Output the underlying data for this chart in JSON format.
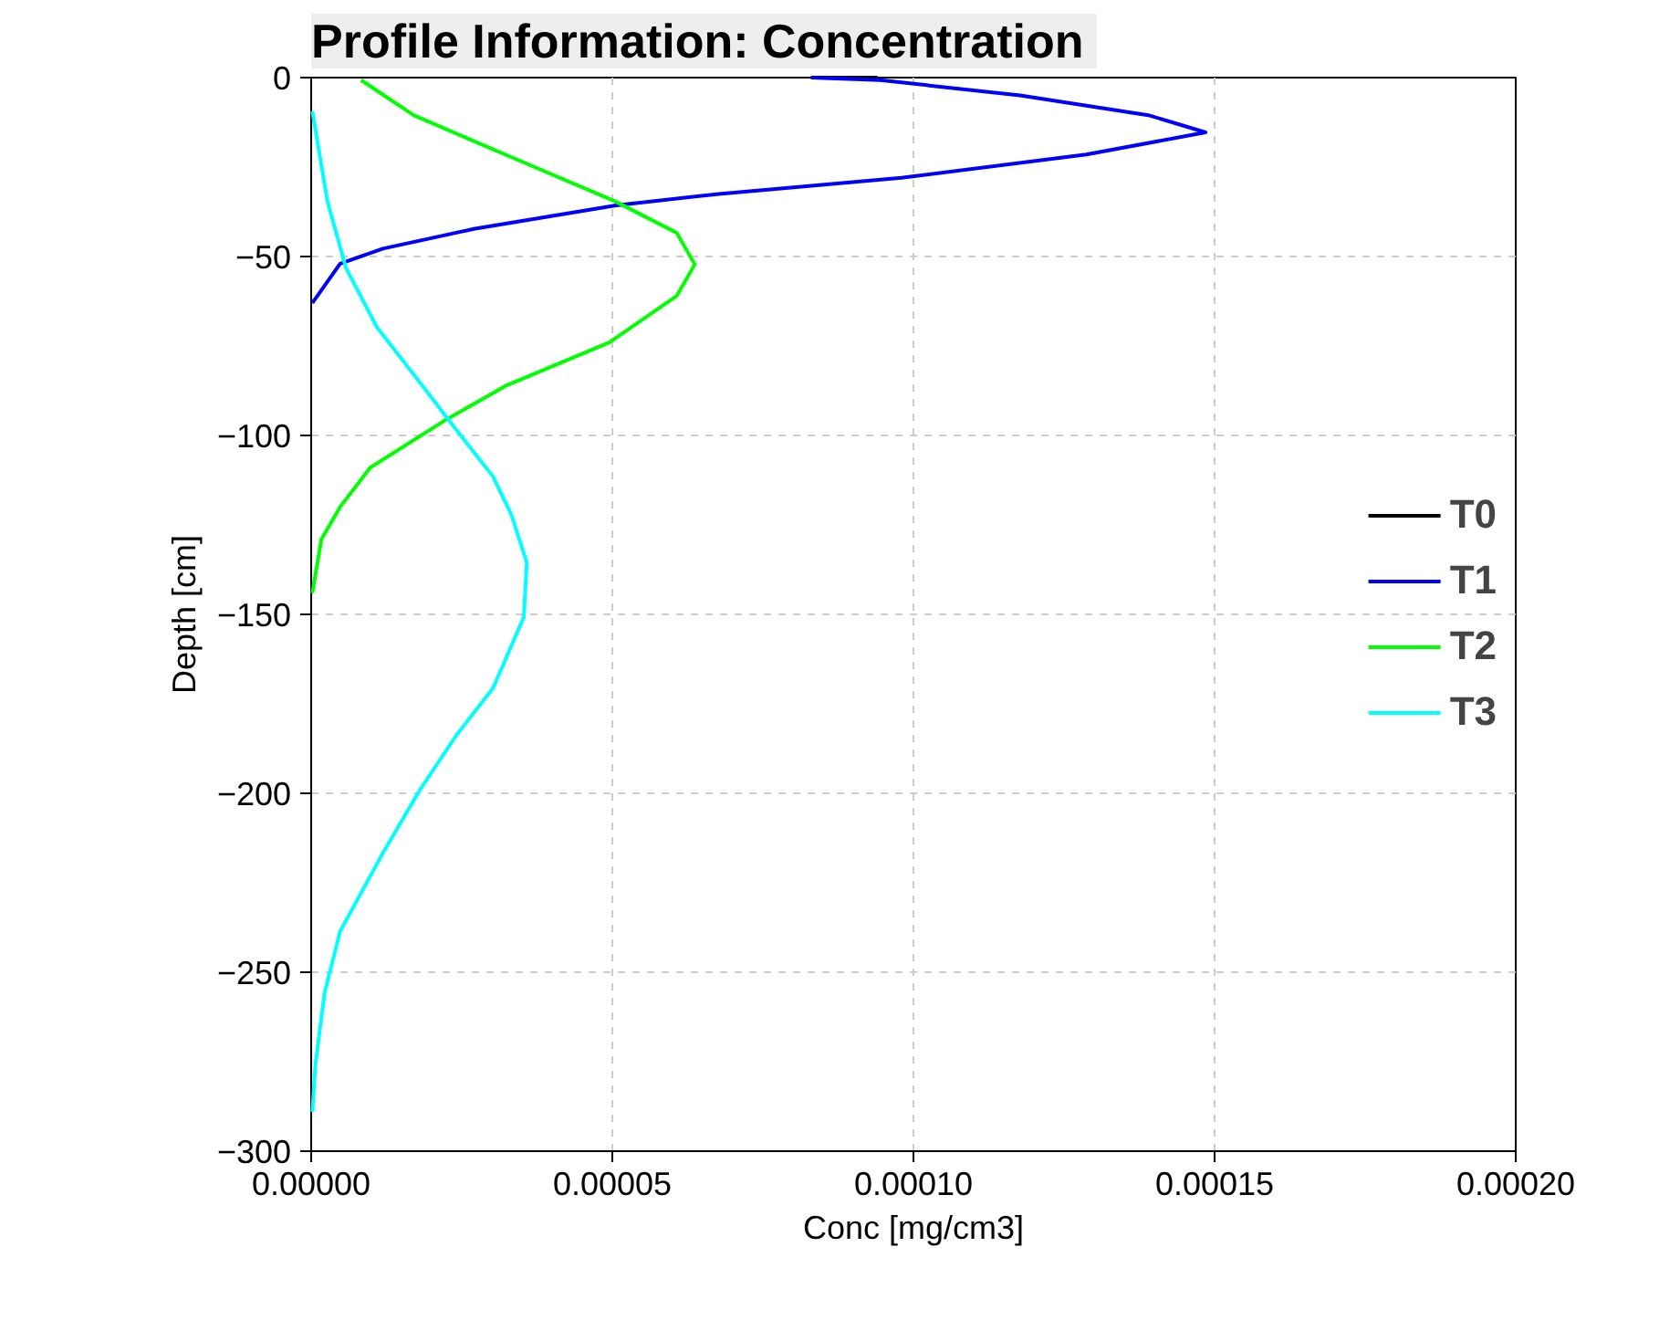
{
  "chart_data": {
    "type": "line",
    "title": "Profile Information:  Concentration",
    "xlabel": "Conc [mg/cm3]",
    "ylabel": "Depth [cm]",
    "xlim": [
      0,
      0.0002
    ],
    "ylim": [
      -300,
      0
    ],
    "xticks": [
      {
        "value": 0,
        "label": "0.00000"
      },
      {
        "value": 5e-05,
        "label": "0.00005"
      },
      {
        "value": 0.0001,
        "label": "0.00010"
      },
      {
        "value": 0.00015,
        "label": "0.00015"
      },
      {
        "value": 0.0002,
        "label": "0.00020"
      }
    ],
    "yticks": [
      0,
      -50,
      -100,
      -150,
      -200,
      -250,
      -300
    ],
    "grid": true,
    "legend": "right",
    "series": [
      {
        "name": "T0",
        "color": "#000000",
        "x": [
          8.3e-05,
          9.4e-05
        ],
        "values": [
          0,
          0
        ]
      },
      {
        "name": "T1",
        "color": "#0000ff",
        "x": [
          8.3e-05,
          9.45e-05,
          0.0001177,
          0.000139,
          0.0001485,
          0.0001287,
          9.8e-05,
          6.77e-05,
          5.06e-05,
          2.7e-05,
          1.19e-05,
          4.8e-06,
          2e-07
        ],
        "values": [
          0,
          -0.7,
          -5,
          -10.5,
          -15.3,
          -21.5,
          -28,
          -32.5,
          -35.7,
          -42.3,
          -47.8,
          -52,
          -63
        ]
      },
      {
        "name": "T2",
        "color": "#00ff00",
        "x": [
          8.3e-06,
          1.7e-05,
          3.22e-05,
          5.05e-05,
          6.07e-05,
          6.37e-05,
          6.07e-05,
          4.95e-05,
          3.22e-05,
          2.2e-05,
          9.8e-06,
          4.8e-06,
          1.7e-06,
          2e-07
        ],
        "values": [
          -0.7,
          -10.5,
          -21.5,
          -34.6,
          -43.4,
          -52.2,
          -61,
          -74,
          -86.2,
          -96,
          -109,
          -120,
          -129,
          -144
        ]
      },
      {
        "name": "T3",
        "color": "#00ffff",
        "x": [
          2e-07,
          2.7e-06,
          5.8e-06,
          1.09e-05,
          1.7e-05,
          2.5e-05,
          3.02e-05,
          3.32e-05,
          3.58e-05,
          3.53e-05,
          3.02e-05,
          2.41e-05,
          1.8e-05,
          1.19e-05,
          4.8e-06,
          2.2e-06,
          7e-07,
          2e-07
        ],
        "values": [
          -9.4,
          -34.6,
          -53.3,
          -69.7,
          -82.9,
          -100.4,
          -111.5,
          -122,
          -135.5,
          -150.8,
          -170.6,
          -183.8,
          -199.2,
          -216.7,
          -238.6,
          -256,
          -275.9,
          -289
        ]
      }
    ]
  }
}
